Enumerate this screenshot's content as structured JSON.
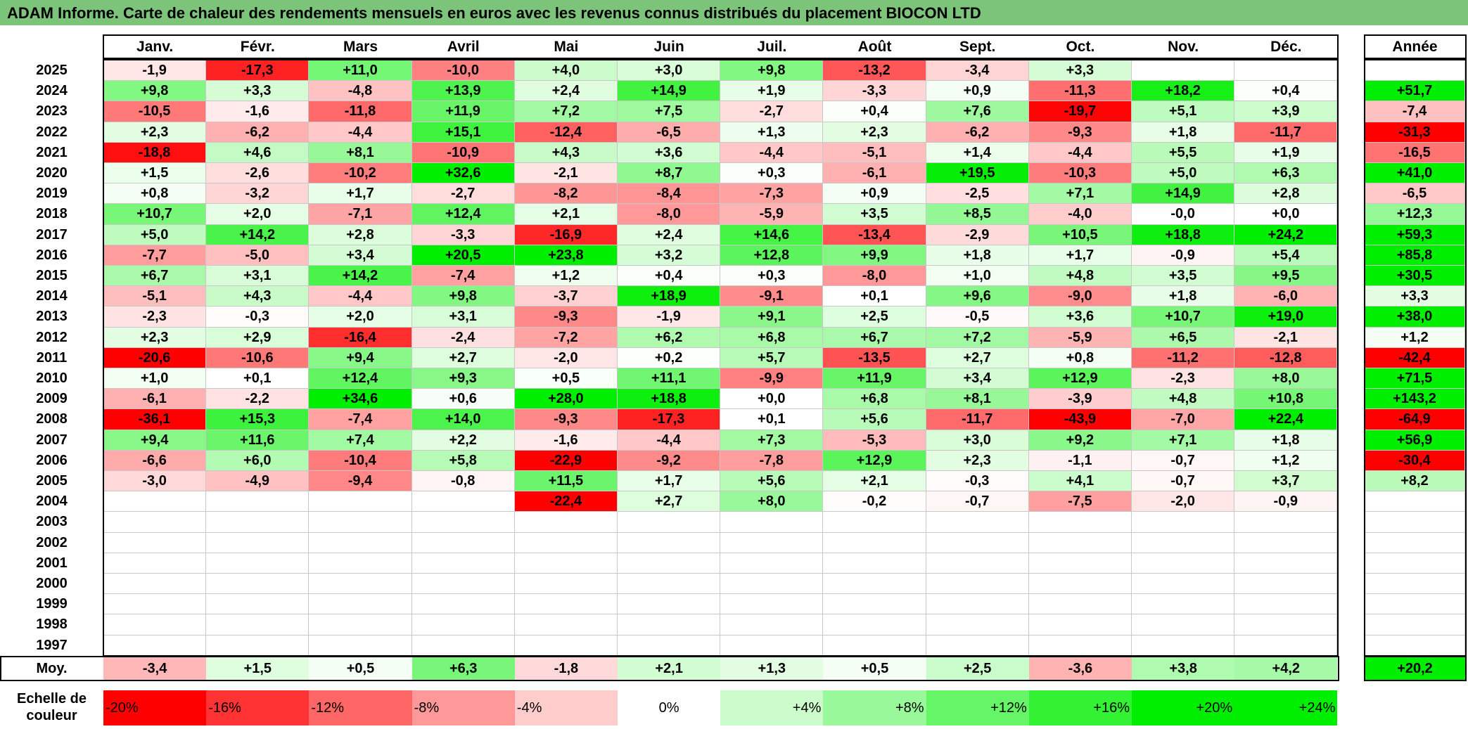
{
  "title": "ADAM Informe. Carte de chaleur des rendements mensuels en euros avec les revenus connus distribués du placement BIOCON LTD",
  "months": [
    "Janv.",
    "Févr.",
    "Mars",
    "Avril",
    "Mai",
    "Juin",
    "Juil.",
    "Août",
    "Sept.",
    "Oct.",
    "Nov.",
    "Déc."
  ],
  "annual_header": "Année",
  "avg_label": "Moy.",
  "scale_label_line1": "Echelle de",
  "scale_label_line2": "couleur",
  "scale_steps": [
    "-20%",
    "-16%",
    "-12%",
    "-8%",
    "-4%",
    "0%",
    "+4%",
    "+8%",
    "+12%",
    "+16%",
    "+20%",
    "+24%"
  ],
  "colors": {
    "title_bg": "#7cc47a",
    "negative": "#ff0000",
    "positive": "#00ee00",
    "neutral": "#ffffff"
  },
  "chart_data": {
    "type": "heatmap",
    "title": "ADAM Informe. Carte de chaleur des rendements mensuels en euros avec les revenus connus distribués du placement BIOCON LTD",
    "columns": [
      "Janv.",
      "Févr.",
      "Mars",
      "Avril",
      "Mai",
      "Juin",
      "Juil.",
      "Août",
      "Sept.",
      "Oct.",
      "Nov.",
      "Déc."
    ],
    "rows": [
      {
        "year": "2025",
        "values": [
          "-1,9",
          "-17,3",
          "+11,0",
          "-10,0",
          "+4,0",
          "+3,0",
          "+9,8",
          "-13,2",
          "-3,4",
          "+3,3",
          "",
          ""
        ],
        "annual": ""
      },
      {
        "year": "2024",
        "values": [
          "+9,8",
          "+3,3",
          "-4,8",
          "+13,9",
          "+2,4",
          "+14,9",
          "+1,9",
          "-3,3",
          "+0,9",
          "-11,3",
          "+18,2",
          "+0,4"
        ],
        "annual": "+51,7"
      },
      {
        "year": "2023",
        "values": [
          "-10,5",
          "-1,6",
          "-11,8",
          "+11,9",
          "+7,2",
          "+7,5",
          "-2,7",
          "+0,4",
          "+7,6",
          "-19,7",
          "+5,1",
          "+3,9"
        ],
        "annual": "-7,4"
      },
      {
        "year": "2022",
        "values": [
          "+2,3",
          "-6,2",
          "-4,4",
          "+15,1",
          "-12,4",
          "-6,5",
          "+1,3",
          "+2,3",
          "-6,2",
          "-9,3",
          "+1,8",
          "-11,7"
        ],
        "annual": "-31,3"
      },
      {
        "year": "2021",
        "values": [
          "-18,8",
          "+4,6",
          "+8,1",
          "-10,9",
          "+4,3",
          "+3,6",
          "-4,4",
          "-5,1",
          "+1,4",
          "-4,4",
          "+5,5",
          "+1,9"
        ],
        "annual": "-16,5"
      },
      {
        "year": "2020",
        "values": [
          "+1,5",
          "-2,6",
          "-10,2",
          "+32,6",
          "-2,1",
          "+8,7",
          "+0,3",
          "-6,1",
          "+19,5",
          "-10,3",
          "+5,0",
          "+6,3"
        ],
        "annual": "+41,0"
      },
      {
        "year": "2019",
        "values": [
          "+0,8",
          "-3,2",
          "+1,7",
          "-2,7",
          "-8,2",
          "-8,4",
          "-7,3",
          "+0,9",
          "-2,5",
          "+7,1",
          "+14,9",
          "+2,8"
        ],
        "annual": "-6,5"
      },
      {
        "year": "2018",
        "values": [
          "+10,7",
          "+2,0",
          "-7,1",
          "+12,4",
          "+2,1",
          "-8,0",
          "-5,9",
          "+3,5",
          "+8,5",
          "-4,0",
          "-0,0",
          "+0,0"
        ],
        "annual": "+12,3"
      },
      {
        "year": "2017",
        "values": [
          "+5,0",
          "+14,2",
          "+2,8",
          "-3,3",
          "-16,9",
          "+2,4",
          "+14,6",
          "-13,4",
          "-2,9",
          "+10,5",
          "+18,8",
          "+24,2"
        ],
        "annual": "+59,3"
      },
      {
        "year": "2016",
        "values": [
          "-7,7",
          "-5,0",
          "+3,4",
          "+20,5",
          "+23,8",
          "+3,2",
          "+12,8",
          "+9,9",
          "+1,8",
          "+1,7",
          "-0,9",
          "+5,4"
        ],
        "annual": "+85,8"
      },
      {
        "year": "2015",
        "values": [
          "+6,7",
          "+3,1",
          "+14,2",
          "-7,4",
          "+1,2",
          "+0,4",
          "+0,3",
          "-8,0",
          "+1,0",
          "+4,8",
          "+3,5",
          "+9,5"
        ],
        "annual": "+30,5"
      },
      {
        "year": "2014",
        "values": [
          "-5,1",
          "+4,3",
          "-4,4",
          "+9,8",
          "-3,7",
          "+18,9",
          "-9,1",
          "+0,1",
          "+9,6",
          "-9,0",
          "+1,8",
          "-6,0"
        ],
        "annual": "+3,3"
      },
      {
        "year": "2013",
        "values": [
          "-2,3",
          "-0,3",
          "+2,0",
          "+3,1",
          "-9,3",
          "-1,9",
          "+9,1",
          "+2,5",
          "-0,5",
          "+3,6",
          "+10,7",
          "+19,0"
        ],
        "annual": "+38,0"
      },
      {
        "year": "2012",
        "values": [
          "+2,3",
          "+2,9",
          "-16,4",
          "-2,4",
          "-7,2",
          "+6,2",
          "+6,8",
          "+6,7",
          "+7,2",
          "-5,9",
          "+6,5",
          "-2,1"
        ],
        "annual": "+1,2"
      },
      {
        "year": "2011",
        "values": [
          "-20,6",
          "-10,6",
          "+9,4",
          "+2,7",
          "-2,0",
          "+0,2",
          "+5,7",
          "-13,5",
          "+2,7",
          "+0,8",
          "-11,2",
          "-12,8"
        ],
        "annual": "-42,4"
      },
      {
        "year": "2010",
        "values": [
          "+1,0",
          "+0,1",
          "+12,4",
          "+9,3",
          "+0,5",
          "+11,1",
          "-9,9",
          "+11,9",
          "+3,4",
          "+12,9",
          "-2,3",
          "+8,0"
        ],
        "annual": "+71,5"
      },
      {
        "year": "2009",
        "values": [
          "-6,1",
          "-2,2",
          "+34,6",
          "+0,6",
          "+28,0",
          "+18,8",
          "+0,0",
          "+6,8",
          "+8,1",
          "-3,9",
          "+4,8",
          "+10,8"
        ],
        "annual": "+143,2"
      },
      {
        "year": "2008",
        "values": [
          "-36,1",
          "+15,3",
          "-7,4",
          "+14,0",
          "-9,3",
          "-17,3",
          "+0,1",
          "+5,6",
          "-11,7",
          "-43,9",
          "-7,0",
          "+22,4"
        ],
        "annual": "-64,9"
      },
      {
        "year": "2007",
        "values": [
          "+9,4",
          "+11,6",
          "+7,4",
          "+2,2",
          "-1,6",
          "-4,4",
          "+7,3",
          "-5,3",
          "+3,0",
          "+9,2",
          "+7,1",
          "+1,8"
        ],
        "annual": "+56,9"
      },
      {
        "year": "2006",
        "values": [
          "-6,6",
          "+6,0",
          "-10,4",
          "+5,8",
          "-22,9",
          "-9,2",
          "-7,8",
          "+12,9",
          "+2,3",
          "-1,1",
          "-0,7",
          "+1,2"
        ],
        "annual": "-30,4"
      },
      {
        "year": "2005",
        "values": [
          "-3,0",
          "-4,9",
          "-9,4",
          "-0,8",
          "+11,5",
          "+1,7",
          "+5,6",
          "+2,1",
          "-0,3",
          "+4,1",
          "-0,7",
          "+3,7"
        ],
        "annual": "+8,2"
      },
      {
        "year": "2004",
        "values": [
          "",
          "",
          "",
          "",
          "-22,4",
          "+2,7",
          "+8,0",
          "-0,2",
          "-0,7",
          "-7,5",
          "-2,0",
          "-0,9"
        ],
        "annual": ""
      },
      {
        "year": "2003",
        "values": [
          "",
          "",
          "",
          "",
          "",
          "",
          "",
          "",
          "",
          "",
          "",
          ""
        ],
        "annual": ""
      },
      {
        "year": "2002",
        "values": [
          "",
          "",
          "",
          "",
          "",
          "",
          "",
          "",
          "",
          "",
          "",
          ""
        ],
        "annual": ""
      },
      {
        "year": "2001",
        "values": [
          "",
          "",
          "",
          "",
          "",
          "",
          "",
          "",
          "",
          "",
          "",
          ""
        ],
        "annual": ""
      },
      {
        "year": "2000",
        "values": [
          "",
          "",
          "",
          "",
          "",
          "",
          "",
          "",
          "",
          "",
          "",
          ""
        ],
        "annual": ""
      },
      {
        "year": "1999",
        "values": [
          "",
          "",
          "",
          "",
          "",
          "",
          "",
          "",
          "",
          "",
          "",
          ""
        ],
        "annual": ""
      },
      {
        "year": "1998",
        "values": [
          "",
          "",
          "",
          "",
          "",
          "",
          "",
          "",
          "",
          "",
          "",
          ""
        ],
        "annual": ""
      },
      {
        "year": "1997",
        "values": [
          "",
          "",
          "",
          "",
          "",
          "",
          "",
          "",
          "",
          "",
          "",
          ""
        ],
        "annual": ""
      }
    ],
    "average": {
      "values": [
        "-3,4",
        "+1,5",
        "+0,5",
        "+6,3",
        "-1,8",
        "+2,1",
        "+1,3",
        "+0,5",
        "+2,5",
        "-3,6",
        "+3,8",
        "+4,2"
      ],
      "annual": "+20,2"
    },
    "color_scale": {
      "min": -20,
      "max": 24,
      "unit": "%"
    }
  }
}
